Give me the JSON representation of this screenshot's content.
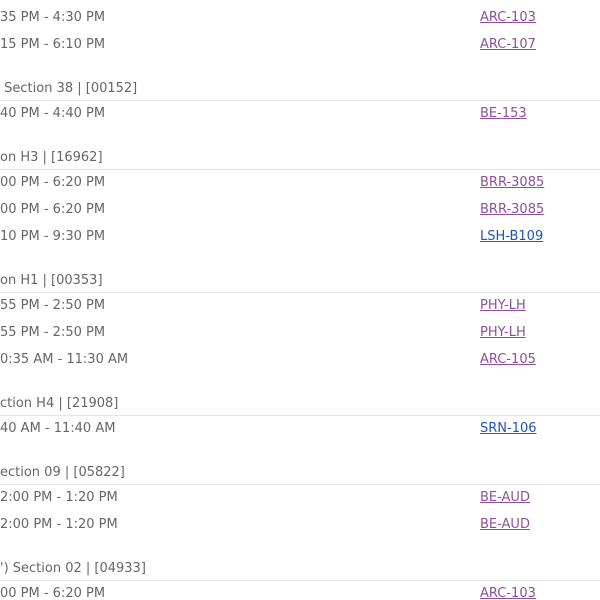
{
  "groups": [
    {
      "header": null,
      "rows": [
        {
          "time": "35 PM - 4:30 PM",
          "room": "ARC-103",
          "visited": true
        },
        {
          "time": "15 PM - 6:10 PM",
          "room": "ARC-107",
          "visited": true
        }
      ]
    },
    {
      "header": " Section 38 | [00152]",
      "rows": [
        {
          "time": "40 PM - 4:40 PM",
          "room": "BE-153",
          "visited": true
        }
      ]
    },
    {
      "header": "on H3 | [16962]",
      "rows": [
        {
          "time": "00 PM - 6:20 PM",
          "room": "BRR-3085",
          "visited": true
        },
        {
          "time": "00 PM - 6:20 PM",
          "room": "BRR-3085",
          "visited": true
        },
        {
          "time": "10 PM - 9:30 PM",
          "room": "LSH-B109",
          "visited": false
        }
      ]
    },
    {
      "header": "on H1 | [00353]",
      "rows": [
        {
          "time": "55 PM - 2:50 PM",
          "room": "PHY-LH",
          "visited": true
        },
        {
          "time": "55 PM - 2:50 PM",
          "room": "PHY-LH",
          "visited": true
        },
        {
          "time": "0:35 AM - 11:30 AM",
          "room": "ARC-105",
          "visited": true
        }
      ]
    },
    {
      "header": "ction H4 | [21908]",
      "rows": [
        {
          "time": "40 AM - 11:40 AM",
          "room": "SRN-106",
          "visited": false
        }
      ]
    },
    {
      "header": "ection 09 | [05822]",
      "rows": [
        {
          "time": "2:00 PM - 1:20 PM",
          "room": "BE-AUD",
          "visited": true
        },
        {
          "time": "2:00 PM - 1:20 PM",
          "room": "BE-AUD",
          "visited": true
        }
      ]
    },
    {
      "header": "') Section 02 | [04933]",
      "rows": [
        {
          "time": "00 PM - 6:20 PM",
          "room": "ARC-103",
          "visited": true
        }
      ]
    }
  ]
}
